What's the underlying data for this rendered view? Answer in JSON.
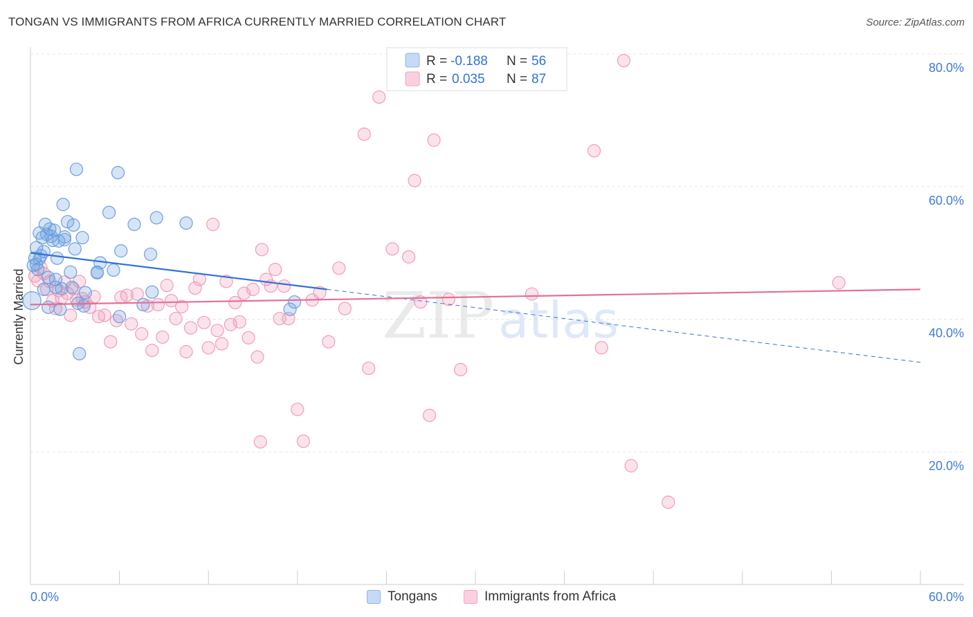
{
  "title": "TONGAN VS IMMIGRANTS FROM AFRICA CURRENTLY MARRIED CORRELATION CHART",
  "source": "Source: ZipAtlas.com",
  "watermark": {
    "zip": "ZIP",
    "atlas": "atlas"
  },
  "chart_data": {
    "type": "scatter",
    "title": "TONGAN VS IMMIGRANTS FROM AFRICA CURRENTLY MARRIED CORRELATION CHART",
    "xlabel": "",
    "ylabel": "Currently Married",
    "xlim": [
      0,
      60
    ],
    "ylim": [
      0,
      80
    ],
    "x_tick_labels": [
      "0.0%",
      "60.0%"
    ],
    "y_ticks": [
      20,
      40,
      60,
      80
    ],
    "y_tick_labels": [
      "20.0%",
      "40.0%",
      "60.0%",
      "80.0%"
    ],
    "legend_stats": [
      {
        "r_label": "R =",
        "r_value": "-0.188",
        "n_label": "N =",
        "n_value": "56"
      },
      {
        "r_label": "R =",
        "r_value": "0.035",
        "n_label": "N =",
        "n_value": "87"
      }
    ],
    "series": [
      {
        "name": "Tongans",
        "color": "#6b9fe0",
        "line_color": "#2f72d6",
        "trend": {
          "x0": 0,
          "y0": 50.0,
          "x1": 20,
          "y1": 44.5,
          "dash_to_x": 60,
          "dash_to_y": 33.5
        },
        "points": [
          [
            0.1,
            42.8
          ],
          [
            0.2,
            48.1
          ],
          [
            0.3,
            49.2
          ],
          [
            0.4,
            50.8
          ],
          [
            0.5,
            47.5
          ],
          [
            0.6,
            53.0
          ],
          [
            0.7,
            49.6
          ],
          [
            0.8,
            52.3
          ],
          [
            0.9,
            44.5
          ],
          [
            1.0,
            54.3
          ],
          [
            1.1,
            52.8
          ],
          [
            1.2,
            46.3
          ],
          [
            1.3,
            53.6
          ],
          [
            1.4,
            52.5
          ],
          [
            1.5,
            51.9
          ],
          [
            1.6,
            53.4
          ],
          [
            1.7,
            44.8
          ],
          [
            1.8,
            49.2
          ],
          [
            1.9,
            51.8
          ],
          [
            2.0,
            41.5
          ],
          [
            2.1,
            44.6
          ],
          [
            2.2,
            57.3
          ],
          [
            2.3,
            52.4
          ],
          [
            2.5,
            54.7
          ],
          [
            2.7,
            47.1
          ],
          [
            2.9,
            54.2
          ],
          [
            3.0,
            50.6
          ],
          [
            3.1,
            62.6
          ],
          [
            3.2,
            42.4
          ],
          [
            3.3,
            34.8
          ],
          [
            3.5,
            52.3
          ],
          [
            3.6,
            42.0
          ],
          [
            3.7,
            44.0
          ],
          [
            4.5,
            47.1
          ],
          [
            4.7,
            48.5
          ],
          [
            5.3,
            56.1
          ],
          [
            5.6,
            47.4
          ],
          [
            5.9,
            62.1
          ],
          [
            6.1,
            50.3
          ],
          [
            7.0,
            54.3
          ],
          [
            7.6,
            42.2
          ],
          [
            8.1,
            49.8
          ],
          [
            8.5,
            55.3
          ],
          [
            10.5,
            54.5
          ],
          [
            6.0,
            40.4
          ],
          [
            8.2,
            44.1
          ],
          [
            17.5,
            41.5
          ],
          [
            17.8,
            42.6
          ],
          [
            0.4,
            48.3
          ],
          [
            2.3,
            52.0
          ],
          [
            1.7,
            46.0
          ],
          [
            0.6,
            49.1
          ],
          [
            1.2,
            41.8
          ],
          [
            4.5,
            47.0
          ],
          [
            0.9,
            50.2
          ],
          [
            2.8,
            44.8
          ]
        ]
      },
      {
        "name": "Immigrants from Africa",
        "color": "#f29cb8",
        "line_color": "#e46f97",
        "trend": {
          "x0": 0,
          "y0": 42.2,
          "x1": 60,
          "y1": 44.5
        },
        "points": [
          [
            0.3,
            46.5
          ],
          [
            0.5,
            45.8
          ],
          [
            0.7,
            47.8
          ],
          [
            0.9,
            46.9
          ],
          [
            1.1,
            44.5
          ],
          [
            1.3,
            45.7
          ],
          [
            1.5,
            42.8
          ],
          [
            1.7,
            41.6
          ],
          [
            1.9,
            44.3
          ],
          [
            2.1,
            43.2
          ],
          [
            2.3,
            45.6
          ],
          [
            2.5,
            43.9
          ],
          [
            2.7,
            40.6
          ],
          [
            2.9,
            44.6
          ],
          [
            3.1,
            42.9
          ],
          [
            3.3,
            45.7
          ],
          [
            3.5,
            43.1
          ],
          [
            3.7,
            42.6
          ],
          [
            4.0,
            41.8
          ],
          [
            4.3,
            43.4
          ],
          [
            4.6,
            40.4
          ],
          [
            5.0,
            40.6
          ],
          [
            5.4,
            36.6
          ],
          [
            5.8,
            39.8
          ],
          [
            6.1,
            43.3
          ],
          [
            6.5,
            43.6
          ],
          [
            6.8,
            39.3
          ],
          [
            7.2,
            43.8
          ],
          [
            7.5,
            37.8
          ],
          [
            7.9,
            42.0
          ],
          [
            8.2,
            35.3
          ],
          [
            8.6,
            42.2
          ],
          [
            8.9,
            37.3
          ],
          [
            9.2,
            45.1
          ],
          [
            9.5,
            42.8
          ],
          [
            9.8,
            40.1
          ],
          [
            10.2,
            41.9
          ],
          [
            10.5,
            35.1
          ],
          [
            10.8,
            38.7
          ],
          [
            11.1,
            44.7
          ],
          [
            11.4,
            46.0
          ],
          [
            11.7,
            39.5
          ],
          [
            12.0,
            35.7
          ],
          [
            12.3,
            54.3
          ],
          [
            12.6,
            38.3
          ],
          [
            12.9,
            36.3
          ],
          [
            13.2,
            45.7
          ],
          [
            13.5,
            39.2
          ],
          [
            13.8,
            42.5
          ],
          [
            14.1,
            39.6
          ],
          [
            14.4,
            43.9
          ],
          [
            14.7,
            37.2
          ],
          [
            15.0,
            44.5
          ],
          [
            15.3,
            34.3
          ],
          [
            15.6,
            50.5
          ],
          [
            15.9,
            46.0
          ],
          [
            16.2,
            45.0
          ],
          [
            16.5,
            47.5
          ],
          [
            16.8,
            40.1
          ],
          [
            17.1,
            45.0
          ],
          [
            17.4,
            40.1
          ],
          [
            18.0,
            26.4
          ],
          [
            18.4,
            21.6
          ],
          [
            19.0,
            42.9
          ],
          [
            19.5,
            44.0
          ],
          [
            20.1,
            36.6
          ],
          [
            20.8,
            47.7
          ],
          [
            21.2,
            41.6
          ],
          [
            22.5,
            67.9
          ],
          [
            22.8,
            32.6
          ],
          [
            23.5,
            73.5
          ],
          [
            24.4,
            50.6
          ],
          [
            25.5,
            49.4
          ],
          [
            25.9,
            60.9
          ],
          [
            26.3,
            42.6
          ],
          [
            26.9,
            25.5
          ],
          [
            27.2,
            67.0
          ],
          [
            28.2,
            43.0
          ],
          [
            29.0,
            32.4
          ],
          [
            33.8,
            43.8
          ],
          [
            38.0,
            65.4
          ],
          [
            38.5,
            35.7
          ],
          [
            40.0,
            79.0
          ],
          [
            40.5,
            17.9
          ],
          [
            43.0,
            12.4
          ],
          [
            54.5,
            45.5
          ],
          [
            15.5,
            21.5
          ]
        ]
      }
    ]
  }
}
